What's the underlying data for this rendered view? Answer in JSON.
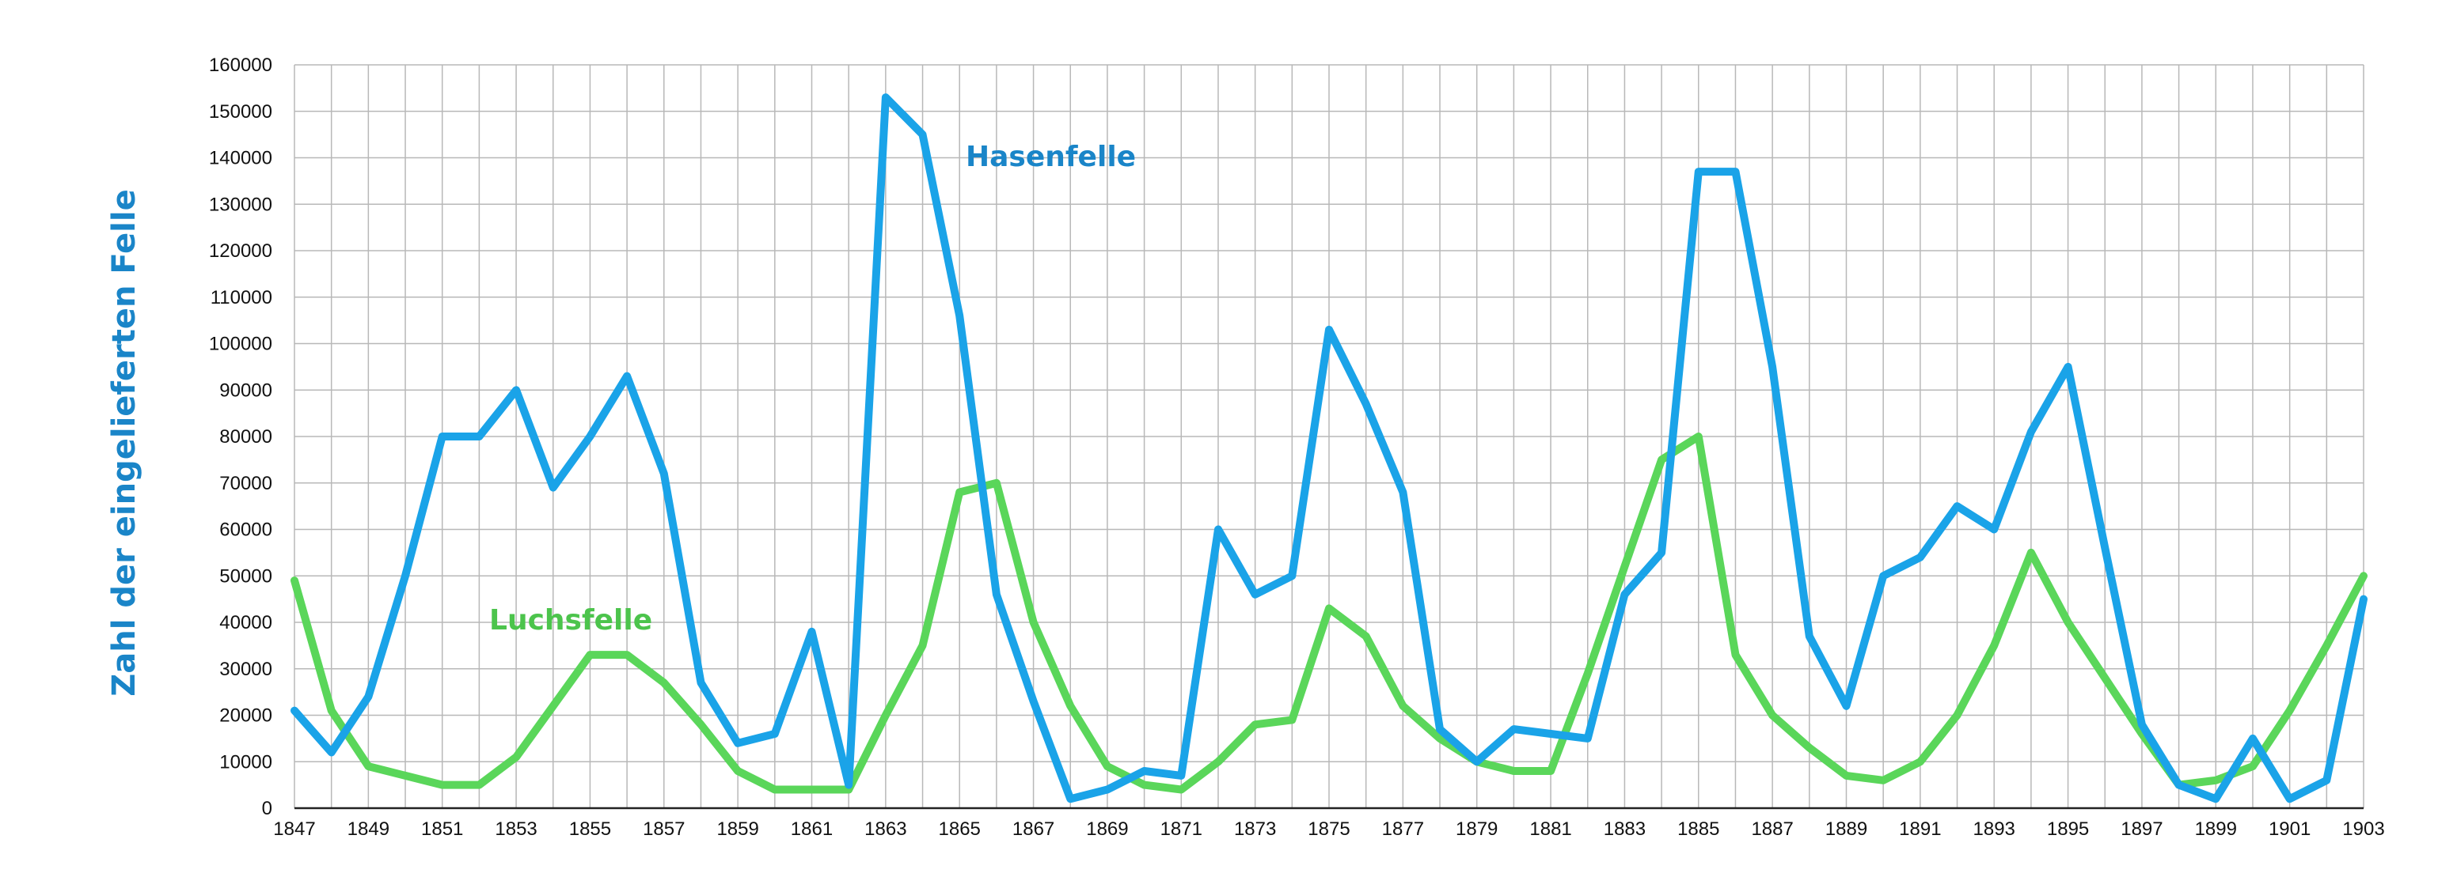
{
  "chart_data": {
    "type": "line",
    "ylabel": "Zahl der eingelieferten Felle",
    "xlabel": "",
    "ylim": [
      0,
      160000
    ],
    "y_ticks": [
      0,
      10000,
      20000,
      30000,
      40000,
      50000,
      60000,
      70000,
      80000,
      90000,
      100000,
      110000,
      120000,
      130000,
      140000,
      150000,
      160000
    ],
    "x_range": [
      1847,
      1903
    ],
    "x_tick_labels": [
      1847,
      1849,
      1851,
      1853,
      1855,
      1857,
      1859,
      1861,
      1863,
      1865,
      1867,
      1869,
      1871,
      1873,
      1875,
      1877,
      1879,
      1881,
      1883,
      1885,
      1887,
      1889,
      1891,
      1893,
      1895,
      1897,
      1899,
      1901,
      1903
    ],
    "grid": true,
    "x": [
      1847,
      1848,
      1849,
      1850,
      1851,
      1852,
      1853,
      1854,
      1855,
      1856,
      1857,
      1858,
      1859,
      1860,
      1861,
      1862,
      1863,
      1864,
      1865,
      1866,
      1867,
      1868,
      1869,
      1870,
      1871,
      1872,
      1873,
      1874,
      1875,
      1876,
      1877,
      1878,
      1879,
      1880,
      1881,
      1882,
      1883,
      1884,
      1885,
      1886,
      1887,
      1888,
      1889,
      1890,
      1891,
      1892,
      1893,
      1894,
      1895,
      1896,
      1897,
      1898,
      1899,
      1900,
      1901,
      1902,
      1903
    ],
    "series": [
      {
        "name": "Hasenfelle",
        "color": "#1aa3e8",
        "label_color": "#1a85c8",
        "values": [
          21000,
          12000,
          24000,
          50000,
          80000,
          80000,
          90000,
          69000,
          80000,
          93000,
          72000,
          27000,
          14000,
          16000,
          38000,
          5000,
          153000,
          145000,
          106000,
          46000,
          23000,
          2000,
          4000,
          8000,
          7000,
          60000,
          46000,
          50000,
          103000,
          87000,
          68000,
          17000,
          10000,
          17000,
          16000,
          15000,
          46000,
          55000,
          137000,
          137000,
          95000,
          37000,
          22000,
          50000,
          54000,
          65000,
          60000,
          81000,
          95000,
          56000,
          18000,
          5000,
          2000,
          15000,
          2000,
          6000,
          45000
        ]
      },
      {
        "name": "Luchsfelle",
        "color": "#5ad65a",
        "label_color": "#4cc44c",
        "values": [
          49000,
          21000,
          9000,
          7000,
          5000,
          5000,
          11000,
          22000,
          33000,
          33000,
          27000,
          18000,
          8000,
          4000,
          4000,
          4000,
          20000,
          35000,
          68000,
          70000,
          40000,
          22000,
          9000,
          5000,
          4000,
          10000,
          18000,
          19000,
          43000,
          37000,
          22000,
          15000,
          10000,
          8000,
          8000,
          29000,
          52000,
          75000,
          80000,
          33000,
          20000,
          13000,
          7000,
          6000,
          10000,
          20000,
          35000,
          55000,
          40000,
          28000,
          16000,
          5000,
          6000,
          9000,
          21000,
          35000,
          50000
        ]
      }
    ]
  }
}
